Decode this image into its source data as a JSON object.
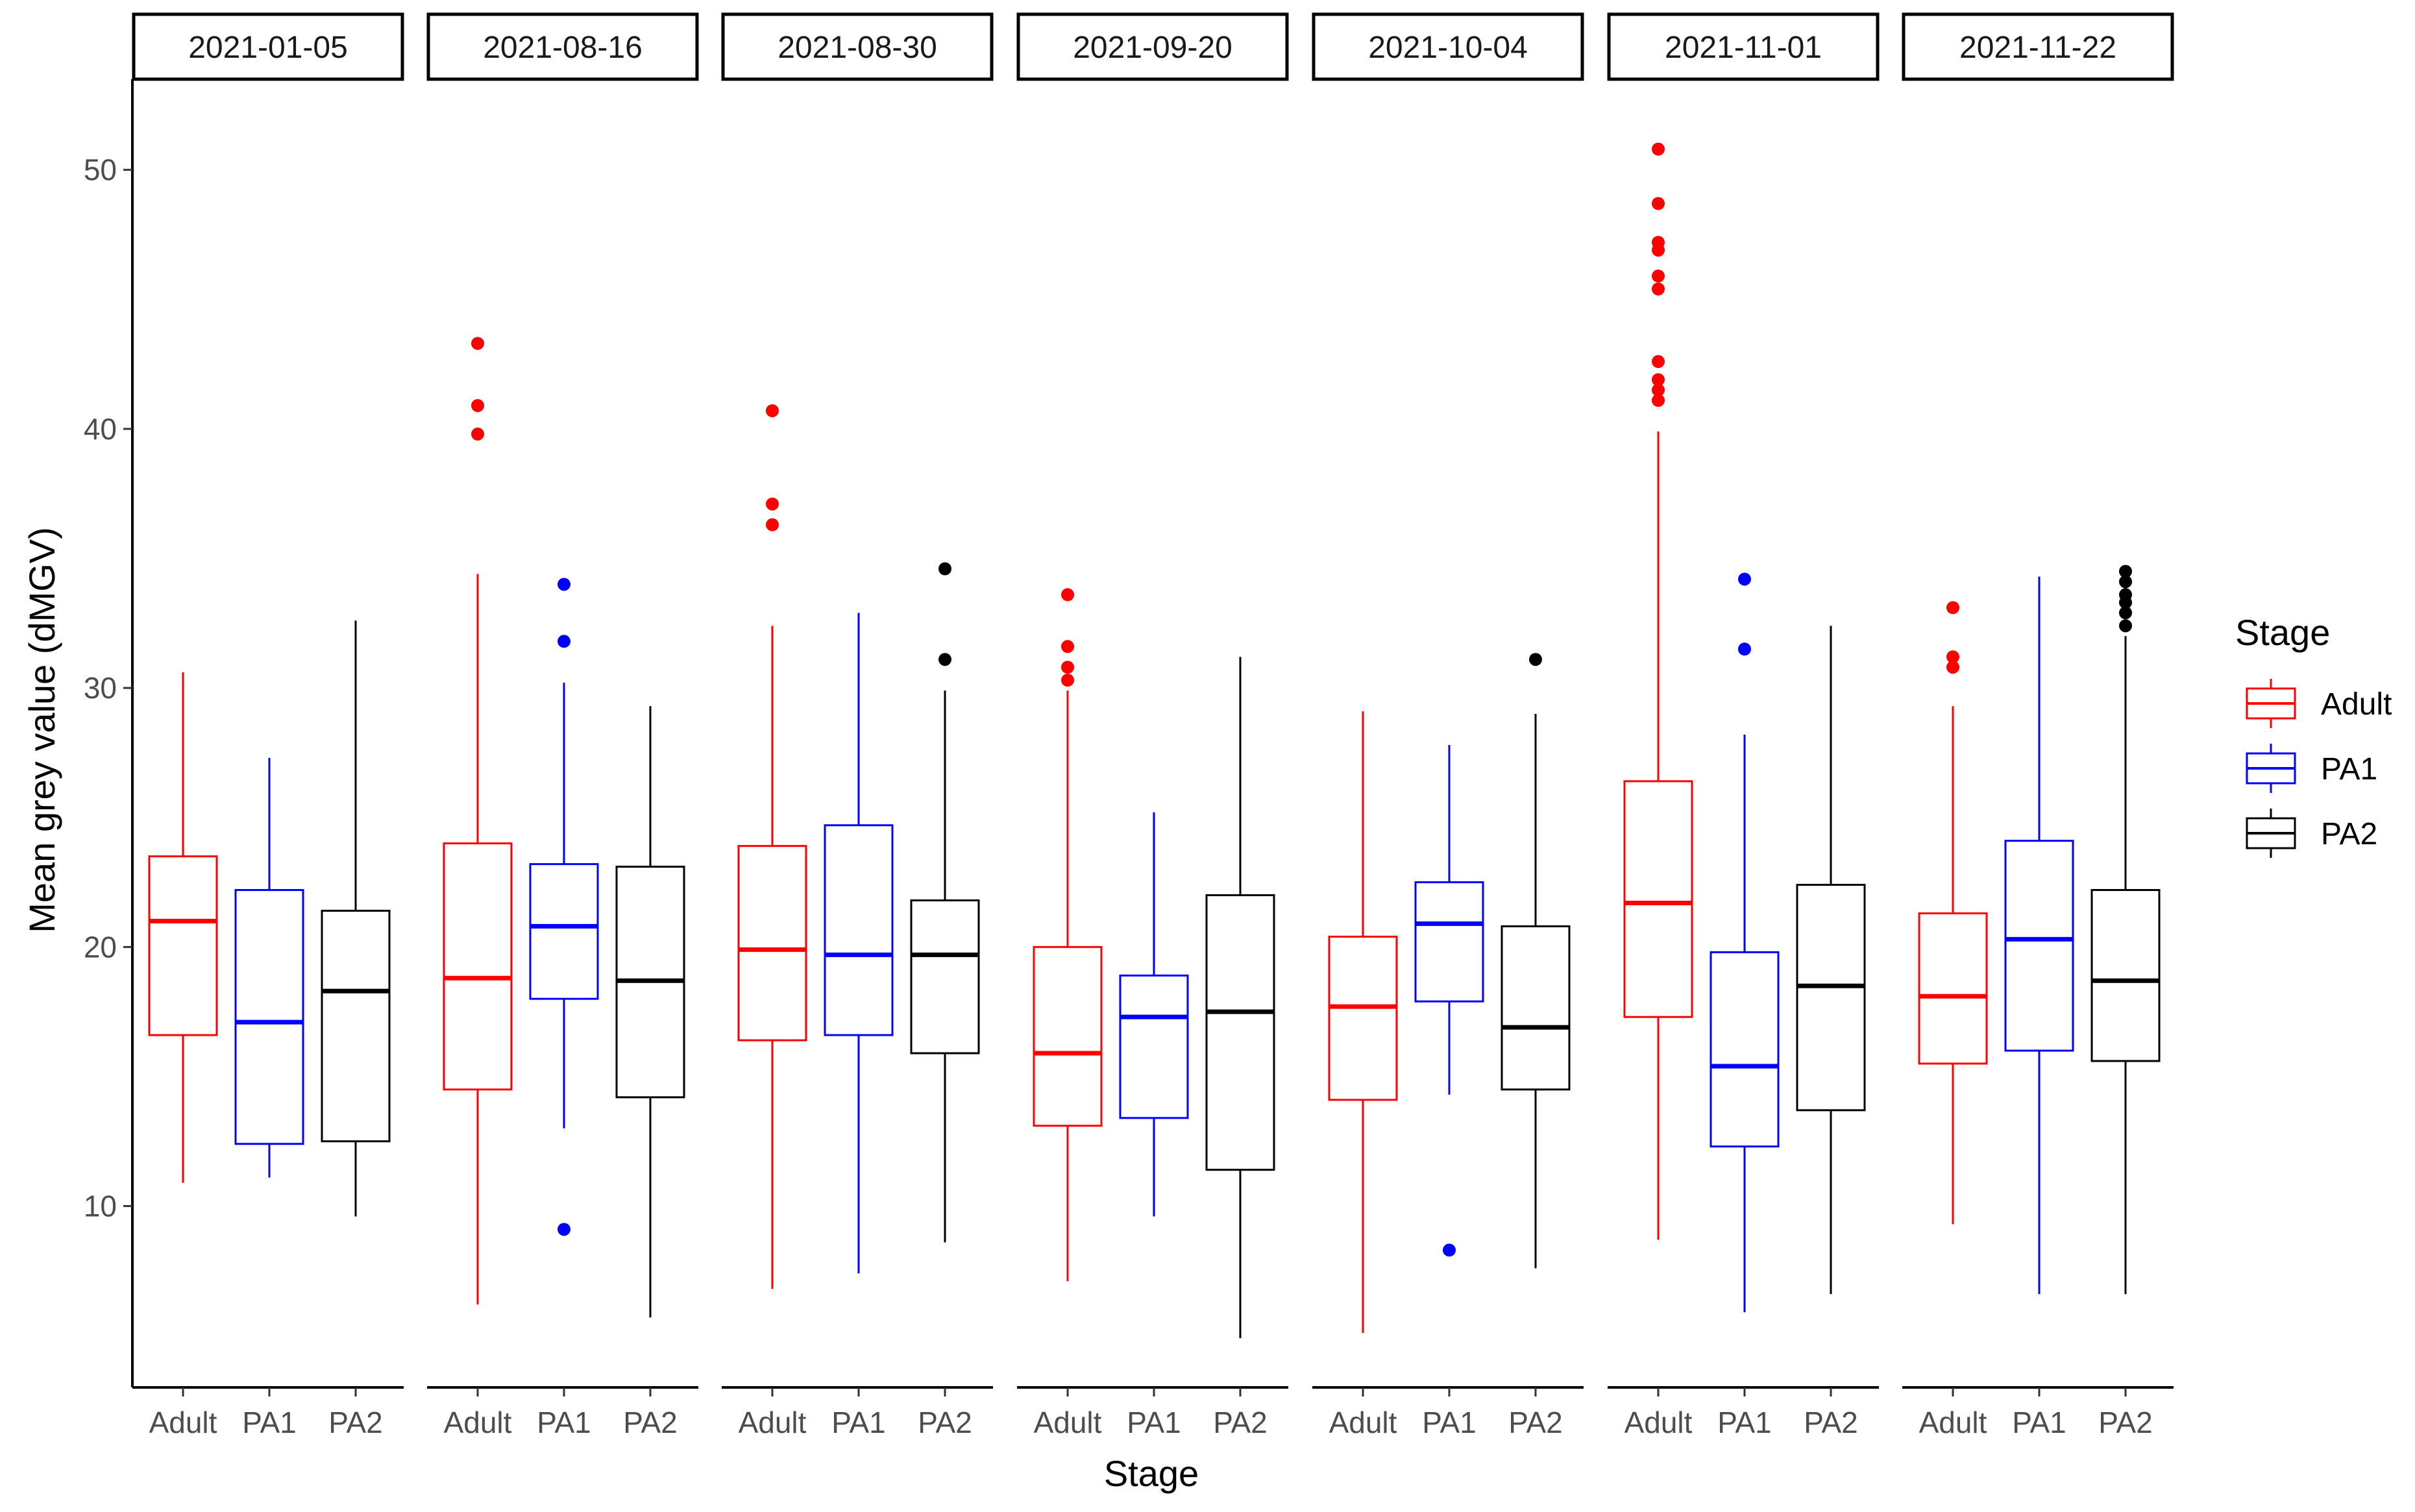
{
  "chart_data": {
    "type": "boxplot",
    "xlabel": "Stage",
    "ylabel": "Mean grey value (dMGV)",
    "ylim": [
      3,
      53.5
    ],
    "yticks": [
      10,
      20,
      30,
      40,
      50
    ],
    "categories": [
      "Adult",
      "PA1",
      "PA2"
    ],
    "colors": {
      "Adult": "#ff0000",
      "PA1": "#0000ff",
      "PA2": "#000000"
    },
    "legend": {
      "title": "Stage",
      "entries": [
        "Adult",
        "PA1",
        "PA2"
      ],
      "position": "right"
    },
    "facets": [
      {
        "label": "2021-01-05",
        "boxes": [
          {
            "stage": "Adult",
            "low": 10.9,
            "q1": 16.6,
            "median": 21.0,
            "q3": 23.5,
            "high": 30.6,
            "outliers": []
          },
          {
            "stage": "PA1",
            "low": 11.1,
            "q1": 12.4,
            "median": 17.1,
            "q3": 22.2,
            "high": 27.3,
            "outliers": []
          },
          {
            "stage": "PA2",
            "low": 9.6,
            "q1": 12.5,
            "median": 18.3,
            "q3": 21.4,
            "high": 32.6,
            "outliers": []
          }
        ]
      },
      {
        "label": "2021-08-16",
        "boxes": [
          {
            "stage": "Adult",
            "low": 6.2,
            "q1": 14.5,
            "median": 18.8,
            "q3": 24.0,
            "high": 34.4,
            "outliers": [
              39.8,
              40.9,
              43.3
            ]
          },
          {
            "stage": "PA1",
            "low": 13.0,
            "q1": 18.0,
            "median": 20.8,
            "q3": 23.2,
            "high": 30.2,
            "outliers": [
              9.1,
              31.8,
              34.0
            ]
          },
          {
            "stage": "PA2",
            "low": 5.7,
            "q1": 14.2,
            "median": 18.7,
            "q3": 23.1,
            "high": 29.3,
            "outliers": []
          }
        ]
      },
      {
        "label": "2021-08-30",
        "boxes": [
          {
            "stage": "Adult",
            "low": 6.8,
            "q1": 16.4,
            "median": 19.9,
            "q3": 23.9,
            "high": 32.4,
            "outliers": [
              36.3,
              37.1,
              40.7
            ]
          },
          {
            "stage": "PA1",
            "low": 7.4,
            "q1": 16.6,
            "median": 19.7,
            "q3": 24.7,
            "high": 32.9,
            "outliers": []
          },
          {
            "stage": "PA2",
            "low": 8.6,
            "q1": 15.9,
            "median": 19.7,
            "q3": 21.8,
            "high": 29.9,
            "outliers": [
              31.1,
              34.6
            ]
          }
        ]
      },
      {
        "label": "2021-09-20",
        "boxes": [
          {
            "stage": "Adult",
            "low": 7.1,
            "q1": 13.1,
            "median": 15.9,
            "q3": 20.0,
            "high": 29.9,
            "outliers": [
              30.3,
              30.8,
              31.6,
              33.6
            ]
          },
          {
            "stage": "PA1",
            "low": 9.6,
            "q1": 13.4,
            "median": 17.3,
            "q3": 18.9,
            "high": 25.2,
            "outliers": []
          },
          {
            "stage": "PA2",
            "low": 4.9,
            "q1": 11.4,
            "median": 17.5,
            "q3": 22.0,
            "high": 31.2,
            "outliers": []
          }
        ]
      },
      {
        "label": "2021-10-04",
        "boxes": [
          {
            "stage": "Adult",
            "low": 5.1,
            "q1": 14.1,
            "median": 17.7,
            "q3": 20.4,
            "high": 29.1,
            "outliers": []
          },
          {
            "stage": "PA1",
            "low": 14.3,
            "q1": 17.9,
            "median": 20.9,
            "q3": 22.5,
            "high": 27.8,
            "outliers": [
              8.3
            ]
          },
          {
            "stage": "PA2",
            "low": 7.6,
            "q1": 14.5,
            "median": 16.9,
            "q3": 20.8,
            "high": 29.0,
            "outliers": [
              31.1
            ]
          }
        ]
      },
      {
        "label": "2021-11-01",
        "boxes": [
          {
            "stage": "Adult",
            "low": 8.7,
            "q1": 17.3,
            "median": 21.7,
            "q3": 26.4,
            "high": 39.9,
            "outliers": [
              41.1,
              41.5,
              41.9,
              42.6,
              45.4,
              45.9,
              46.9,
              47.2,
              48.7,
              50.8
            ]
          },
          {
            "stage": "PA1",
            "low": 5.9,
            "q1": 12.3,
            "median": 15.4,
            "q3": 19.8,
            "high": 28.2,
            "outliers": [
              31.5,
              34.2
            ]
          },
          {
            "stage": "PA2",
            "low": 6.6,
            "q1": 13.7,
            "median": 18.5,
            "q3": 22.4,
            "high": 32.4,
            "outliers": []
          }
        ]
      },
      {
        "label": "2021-11-22",
        "boxes": [
          {
            "stage": "Adult",
            "low": 9.3,
            "q1": 15.5,
            "median": 18.1,
            "q3": 21.3,
            "high": 29.3,
            "outliers": [
              30.8,
              31.2,
              33.1
            ]
          },
          {
            "stage": "PA1",
            "low": 6.6,
            "q1": 16.0,
            "median": 20.3,
            "q3": 24.1,
            "high": 34.3,
            "outliers": []
          },
          {
            "stage": "PA2",
            "low": 6.6,
            "q1": 15.6,
            "median": 18.7,
            "q3": 22.2,
            "high": 32.0,
            "outliers": [
              32.4,
              32.9,
              33.3,
              33.6,
              34.1,
              34.5
            ]
          }
        ]
      }
    ]
  }
}
